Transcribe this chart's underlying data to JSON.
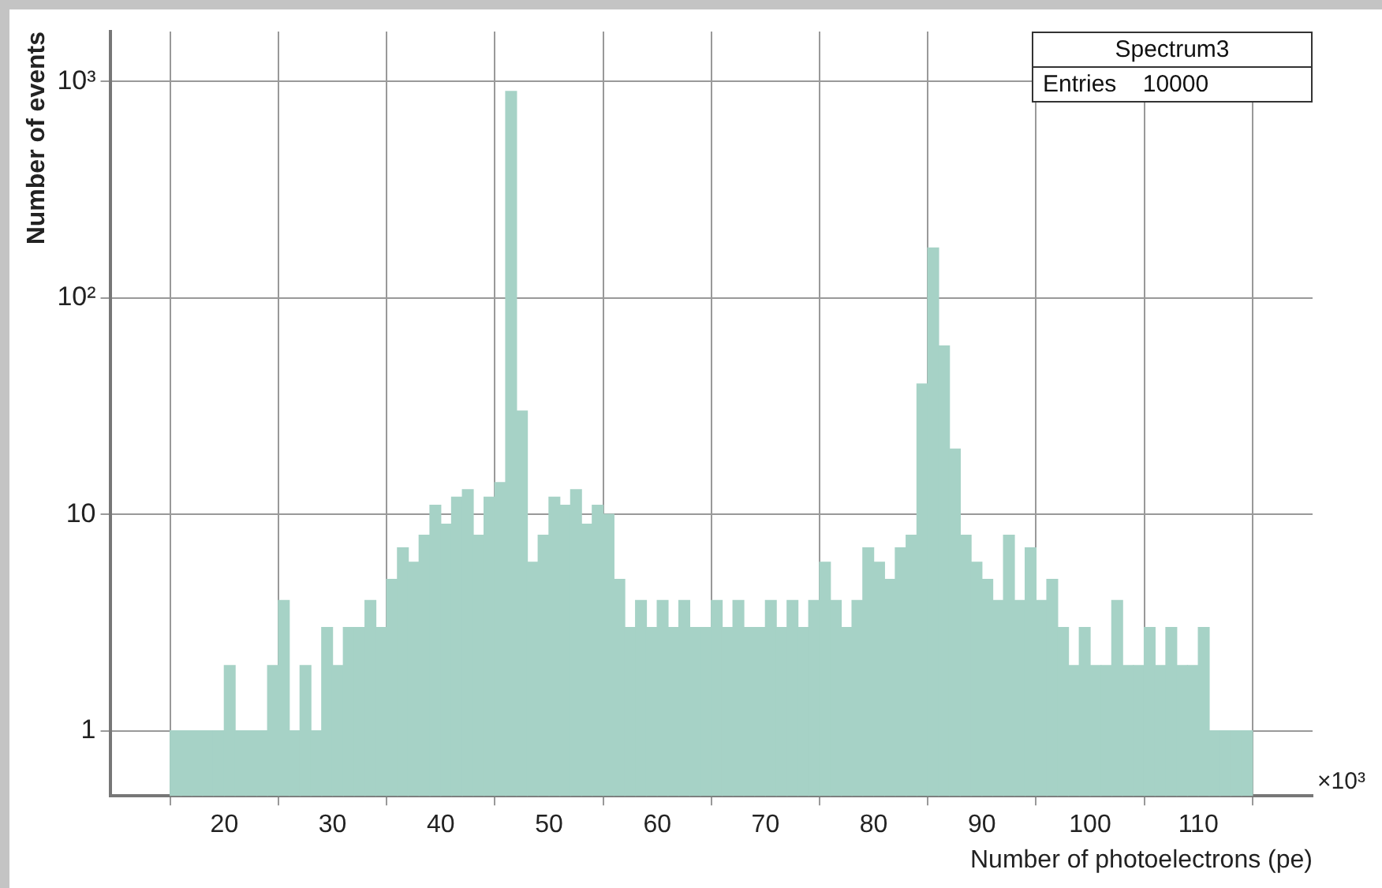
{
  "chart_data": {
    "type": "histogram",
    "xlabel": "Number of photoelectrons (pe)",
    "ylabel": "Number of events",
    "annotations": [
      "Spectrum3",
      "Entries    10000",
      "×10³"
    ],
    "bins": [
      15,
      16,
      17,
      18,
      19,
      20,
      21,
      22,
      23,
      24,
      25,
      26,
      27,
      28,
      29,
      30,
      31,
      32,
      33,
      34,
      35,
      36,
      37,
      38,
      39,
      40,
      41,
      42,
      43,
      44,
      45,
      46,
      47,
      48,
      49,
      50,
      51,
      52,
      53,
      54,
      55,
      56,
      57,
      58,
      59,
      60,
      61,
      62,
      63,
      64,
      65,
      66,
      67,
      68,
      69,
      70,
      71,
      72,
      73,
      74,
      75,
      76,
      77,
      78,
      79,
      80,
      81,
      82,
      83,
      84,
      85,
      86,
      87,
      88,
      89,
      90,
      91,
      92,
      93,
      94,
      95,
      96,
      97,
      98,
      99,
      100,
      101,
      102,
      103,
      104,
      105,
      106,
      107,
      108,
      109,
      110,
      111,
      112,
      113,
      114,
      115
    ],
    "values": [
      1,
      1,
      1,
      1,
      1,
      2,
      1,
      1,
      1,
      2,
      4,
      1,
      2,
      1,
      3,
      2,
      3,
      3,
      4,
      3,
      5,
      7,
      6,
      8,
      11,
      9,
      12,
      13,
      8,
      12,
      14,
      900,
      30,
      6,
      8,
      12,
      11,
      13,
      9,
      11,
      10,
      5,
      3,
      4,
      3,
      4,
      3,
      4,
      3,
      3,
      4,
      3,
      4,
      3,
      3,
      4,
      3,
      4,
      3,
      4,
      6,
      4,
      3,
      4,
      7,
      6,
      5,
      7,
      8,
      40,
      170,
      60,
      20,
      8,
      6,
      5,
      4,
      8,
      4,
      7,
      4,
      5,
      3,
      2,
      3,
      2,
      2,
      4,
      2,
      2,
      3,
      2,
      3,
      2,
      2,
      3,
      1,
      1,
      1,
      1
    ],
    "color": "#a6d2c6",
    "log": "y",
    "xlim": [
      15,
      115
    ],
    "ylim": [
      0.5,
      1700
    ],
    "xticks": [
      20,
      30,
      40,
      50,
      60,
      70,
      80,
      90,
      100,
      110
    ],
    "yticks": [
      {
        "value": 1,
        "label": "1"
      },
      {
        "value": 10,
        "label": "10"
      },
      {
        "value": 100,
        "label": "10²"
      },
      {
        "value": 1000,
        "label": "10³"
      }
    ],
    "grid": true,
    "legend": false
  }
}
